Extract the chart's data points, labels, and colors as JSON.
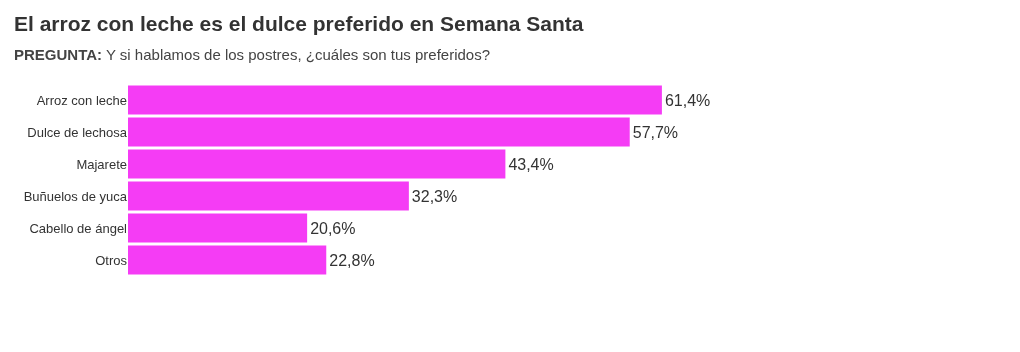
{
  "chart_data": {
    "type": "bar",
    "orientation": "horizontal",
    "title": "El arroz con leche es el dulce preferido en Semana Santa",
    "subtitle": "PREGUNTA: Y si hablamos de los postres, ¿cuáles son tus preferidos?",
    "categories": [
      "Arroz con leche",
      "Dulce de lechosa",
      "Majarete",
      "Buñuelos de yuca",
      "Cabello de ángel",
      "Otros"
    ],
    "values": [
      61.4,
      57.7,
      43.4,
      32.3,
      20.6,
      22.8
    ],
    "value_labels": [
      "61,4%",
      "57,7%",
      "43,4%",
      "32,3%",
      "20,6%",
      "22,8%"
    ],
    "color": "#f53cf5",
    "grid": false,
    "tick_labels": "y"
  }
}
